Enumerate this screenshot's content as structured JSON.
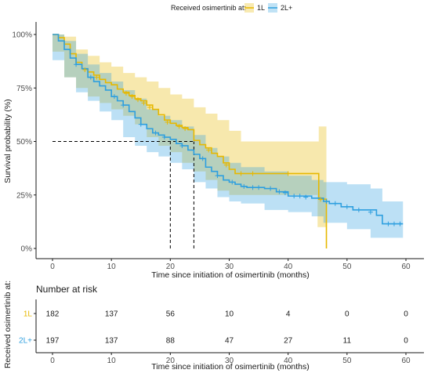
{
  "chart_data": {
    "type": "line",
    "chart_kind": "kaplan-meier",
    "legend": {
      "title": "Received osimertinib at:",
      "placement": "top",
      "items": [
        "1L",
        "2L+"
      ]
    },
    "xlabel": "Time since initiation of osimertinib (months)",
    "ylabel": "Survival probability (%)",
    "xlim": [
      0,
      60
    ],
    "ylim": [
      0,
      1
    ],
    "x_ticks": [
      0,
      10,
      20,
      30,
      40,
      50,
      60
    ],
    "y_ticks": [
      {
        "value": 1.0,
        "label": "100%"
      },
      {
        "value": 0.75,
        "label": "75%"
      },
      {
        "value": 0.5,
        "label": "50%"
      },
      {
        "value": 0.25,
        "label": "25%"
      },
      {
        "value": 0.0,
        "label": "0%"
      }
    ],
    "grid": false,
    "series": [
      {
        "name": "1L",
        "color": "#E7B800",
        "steps": [
          [
            0,
            1.0
          ],
          [
            1,
            0.985
          ],
          [
            2,
            0.955
          ],
          [
            3,
            0.91
          ],
          [
            4,
            0.87
          ],
          [
            5,
            0.84
          ],
          [
            6,
            0.825
          ],
          [
            7,
            0.81
          ],
          [
            8,
            0.79
          ],
          [
            9,
            0.775
          ],
          [
            10,
            0.765
          ],
          [
            11,
            0.745
          ],
          [
            12,
            0.73
          ],
          [
            13,
            0.715
          ],
          [
            14,
            0.7
          ],
          [
            15,
            0.69
          ],
          [
            16,
            0.67
          ],
          [
            17,
            0.65
          ],
          [
            18,
            0.625
          ],
          [
            19,
            0.6
          ],
          [
            20,
            0.585
          ],
          [
            21,
            0.575
          ],
          [
            22,
            0.565
          ],
          [
            23,
            0.555
          ],
          [
            24,
            0.505
          ],
          [
            25,
            0.485
          ],
          [
            26,
            0.47
          ],
          [
            27,
            0.445
          ],
          [
            28,
            0.43
          ],
          [
            29,
            0.4
          ],
          [
            30,
            0.37
          ],
          [
            31,
            0.35
          ],
          [
            45,
            0.35
          ],
          [
            45.2,
            0.23
          ],
          [
            46.5,
            0.0
          ]
        ],
        "ci_upper": [
          [
            0,
            1.0
          ],
          [
            2,
            0.99
          ],
          [
            4,
            0.93
          ],
          [
            6,
            0.9
          ],
          [
            8,
            0.87
          ],
          [
            10,
            0.85
          ],
          [
            12,
            0.82
          ],
          [
            14,
            0.8
          ],
          [
            16,
            0.78
          ],
          [
            18,
            0.75
          ],
          [
            20,
            0.72
          ],
          [
            22,
            0.7
          ],
          [
            24,
            0.66
          ],
          [
            26,
            0.63
          ],
          [
            28,
            0.6
          ],
          [
            30,
            0.55
          ],
          [
            32,
            0.5
          ],
          [
            45,
            0.5
          ],
          [
            45.2,
            0.57
          ],
          [
            46.5,
            0.57
          ]
        ],
        "ci_lower": [
          [
            0,
            1.0
          ],
          [
            2,
            0.92
          ],
          [
            4,
            0.8
          ],
          [
            6,
            0.75
          ],
          [
            8,
            0.71
          ],
          [
            10,
            0.68
          ],
          [
            12,
            0.65
          ],
          [
            14,
            0.62
          ],
          [
            16,
            0.58
          ],
          [
            18,
            0.52
          ],
          [
            20,
            0.48
          ],
          [
            22,
            0.45
          ],
          [
            24,
            0.4
          ],
          [
            26,
            0.36
          ],
          [
            28,
            0.32
          ],
          [
            30,
            0.27
          ],
          [
            32,
            0.25
          ],
          [
            45,
            0.25
          ],
          [
            45.2,
            0.1
          ],
          [
            46.5,
            0.1
          ]
        ],
        "censors": [
          [
            5.5,
            0.835
          ],
          [
            7.5,
            0.8
          ],
          [
            12.5,
            0.725
          ],
          [
            13.5,
            0.71
          ],
          [
            14.5,
            0.695
          ],
          [
            15.5,
            0.68
          ],
          [
            16.5,
            0.66
          ],
          [
            19.5,
            0.59
          ],
          [
            21.5,
            0.57
          ],
          [
            22.5,
            0.56
          ],
          [
            26.5,
            0.46
          ],
          [
            29.5,
            0.39
          ],
          [
            32,
            0.35
          ],
          [
            34,
            0.35
          ],
          [
            40,
            0.35
          ],
          [
            45.5,
            0.23
          ]
        ]
      },
      {
        "name": "2L+",
        "color": "#2E9FDF",
        "steps": [
          [
            0,
            1.0
          ],
          [
            1,
            0.97
          ],
          [
            2,
            0.93
          ],
          [
            3,
            0.89
          ],
          [
            4,
            0.86
          ],
          [
            5,
            0.84
          ],
          [
            6,
            0.8
          ],
          [
            7,
            0.78
          ],
          [
            8,
            0.76
          ],
          [
            9,
            0.74
          ],
          [
            10,
            0.71
          ],
          [
            11,
            0.69
          ],
          [
            12,
            0.67
          ],
          [
            13,
            0.64
          ],
          [
            14,
            0.61
          ],
          [
            15,
            0.58
          ],
          [
            16,
            0.56
          ],
          [
            17,
            0.54
          ],
          [
            18,
            0.53
          ],
          [
            19,
            0.52
          ],
          [
            20,
            0.51
          ],
          [
            21,
            0.49
          ],
          [
            22,
            0.48
          ],
          [
            23,
            0.46
          ],
          [
            24,
            0.44
          ],
          [
            25,
            0.42
          ],
          [
            26,
            0.38
          ],
          [
            27,
            0.36
          ],
          [
            28,
            0.34
          ],
          [
            29,
            0.32
          ],
          [
            30,
            0.31
          ],
          [
            31,
            0.3
          ],
          [
            32,
            0.29
          ],
          [
            33,
            0.285
          ],
          [
            36,
            0.28
          ],
          [
            38,
            0.265
          ],
          [
            40,
            0.245
          ],
          [
            44,
            0.235
          ],
          [
            46,
            0.22
          ],
          [
            47,
            0.21
          ],
          [
            49,
            0.195
          ],
          [
            51,
            0.18
          ],
          [
            55,
            0.155
          ],
          [
            56,
            0.115
          ],
          [
            59.5,
            0.115
          ]
        ],
        "ci_upper": [
          [
            0,
            1.0
          ],
          [
            2,
            0.97
          ],
          [
            4,
            0.91
          ],
          [
            6,
            0.86
          ],
          [
            8,
            0.82
          ],
          [
            10,
            0.78
          ],
          [
            12,
            0.74
          ],
          [
            14,
            0.7
          ],
          [
            16,
            0.65
          ],
          [
            18,
            0.62
          ],
          [
            20,
            0.6
          ],
          [
            22,
            0.57
          ],
          [
            24,
            0.53
          ],
          [
            26,
            0.47
          ],
          [
            28,
            0.43
          ],
          [
            30,
            0.4
          ],
          [
            32,
            0.38
          ],
          [
            36,
            0.36
          ],
          [
            40,
            0.34
          ],
          [
            44,
            0.32
          ],
          [
            46,
            0.31
          ],
          [
            50,
            0.3
          ],
          [
            54,
            0.28
          ],
          [
            56,
            0.22
          ],
          [
            59.5,
            0.22
          ]
        ],
        "ci_lower": [
          [
            0,
            1.0
          ],
          [
            2,
            0.88
          ],
          [
            4,
            0.8
          ],
          [
            6,
            0.73
          ],
          [
            8,
            0.69
          ],
          [
            10,
            0.64
          ],
          [
            12,
            0.6
          ],
          [
            14,
            0.52
          ],
          [
            16,
            0.48
          ],
          [
            18,
            0.45
          ],
          [
            20,
            0.43
          ],
          [
            22,
            0.4
          ],
          [
            24,
            0.37
          ],
          [
            26,
            0.31
          ],
          [
            28,
            0.28
          ],
          [
            30,
            0.24
          ],
          [
            32,
            0.22
          ],
          [
            36,
            0.21
          ],
          [
            40,
            0.18
          ],
          [
            44,
            0.17
          ],
          [
            46,
            0.15
          ],
          [
            50,
            0.12
          ],
          [
            54,
            0.09
          ],
          [
            56,
            0.05
          ],
          [
            59.5,
            0.05
          ]
        ],
        "censors": [
          [
            4,
            0.86
          ],
          [
            6.5,
            0.8
          ],
          [
            10.5,
            0.71
          ],
          [
            12,
            0.67
          ],
          [
            15,
            0.58
          ],
          [
            17.5,
            0.54
          ],
          [
            19,
            0.52
          ],
          [
            22,
            0.48
          ],
          [
            25.5,
            0.42
          ],
          [
            28,
            0.34
          ],
          [
            30.5,
            0.31
          ],
          [
            32.5,
            0.29
          ],
          [
            34,
            0.285
          ],
          [
            35,
            0.285
          ],
          [
            37,
            0.28
          ],
          [
            38.5,
            0.265
          ],
          [
            39.5,
            0.26
          ],
          [
            41,
            0.245
          ],
          [
            42,
            0.245
          ],
          [
            43,
            0.24
          ],
          [
            46.5,
            0.22
          ],
          [
            48,
            0.21
          ],
          [
            50,
            0.195
          ],
          [
            52,
            0.18
          ],
          [
            54,
            0.17
          ],
          [
            57,
            0.115
          ],
          [
            58,
            0.115
          ],
          [
            59,
            0.115
          ]
        ]
      }
    ],
    "median_lines": [
      {
        "y": 0.5,
        "x_from": 0,
        "x_to": 24
      },
      {
        "x": 20,
        "y_from": 0,
        "y_to": 0.5
      },
      {
        "x": 24,
        "y_from": 0,
        "y_to": 0.5
      }
    ],
    "risk_table": {
      "title": "Number at risk",
      "ylabel": "Received osimertinib at:",
      "xlabel": "Time since initiation of osimertinib (months)",
      "times": [
        0,
        10,
        20,
        30,
        40,
        50,
        60
      ],
      "rows": [
        {
          "label": "1L",
          "color": "#E7B800",
          "values": [
            182,
            137,
            56,
            10,
            4,
            0,
            0
          ]
        },
        {
          "label": "2L+",
          "color": "#2E9FDF",
          "values": [
            197,
            137,
            88,
            47,
            27,
            11,
            0
          ]
        }
      ]
    }
  }
}
